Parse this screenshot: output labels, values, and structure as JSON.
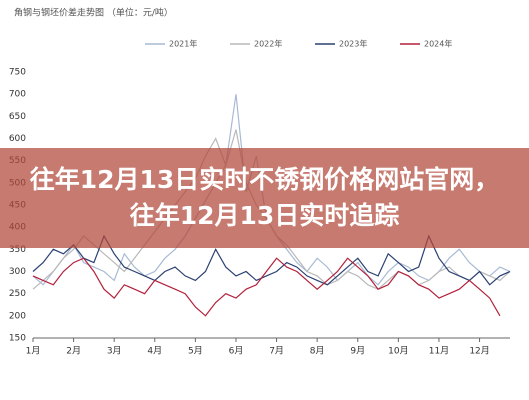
{
  "banner_text": "往年12月13日实时不锈钢价格网站官网，往年12月13日实时追踪",
  "chart_data": {
    "type": "line",
    "title": "角钢与钢坯价差走势图 （单位：元/吨）",
    "categories": [
      "1月",
      null,
      null,
      null,
      "2月",
      null,
      null,
      null,
      "3月",
      null,
      null,
      null,
      "4月",
      null,
      null,
      null,
      "5月",
      null,
      null,
      null,
      "6月",
      null,
      null,
      null,
      "7月",
      null,
      null,
      null,
      "8月",
      null,
      null,
      null,
      "9月",
      null,
      null,
      null,
      "10月",
      null,
      null,
      null,
      "11月",
      null,
      null,
      null,
      "12月",
      null,
      null,
      null
    ],
    "ylim": [
      150,
      750
    ],
    "yticks": [
      150,
      200,
      250,
      300,
      350,
      400,
      450,
      500,
      550,
      600,
      650,
      700,
      750
    ],
    "series": [
      {
        "name": "2021年",
        "color": "#a9bad4",
        "values": [
          290,
          270,
          300,
          330,
          360,
          320,
          310,
          300,
          280,
          340,
          310,
          290,
          300,
          330,
          350,
          380,
          420,
          460,
          500,
          540,
          700,
          480,
          560,
          420,
          380,
          350,
          320,
          300,
          330,
          310,
          280,
          300,
          320,
          290,
          270,
          300,
          320,
          310,
          290,
          280,
          300,
          330,
          350,
          320,
          300,
          290,
          310,
          300
        ]
      },
      {
        "name": "2022年",
        "color": "#b9b9b9",
        "values": [
          260,
          280,
          300,
          330,
          350,
          380,
          360,
          340,
          320,
          300,
          330,
          360,
          390,
          420,
          450,
          480,
          510,
          560,
          600,
          540,
          620,
          500,
          450,
          420,
          380,
          360,
          330,
          300,
          290,
          270,
          280,
          300,
          290,
          270,
          260,
          280,
          300,
          290,
          270,
          280,
          300,
          310,
          290,
          280,
          300,
          290,
          280,
          300
        ]
      },
      {
        "name": "2023年",
        "color": "#2b4172",
        "values": [
          300,
          320,
          350,
          340,
          360,
          330,
          320,
          380,
          340,
          310,
          300,
          290,
          280,
          300,
          310,
          290,
          280,
          300,
          350,
          310,
          290,
          300,
          280,
          290,
          300,
          320,
          310,
          290,
          280,
          270,
          290,
          310,
          330,
          300,
          290,
          340,
          320,
          300,
          310,
          380,
          330,
          300,
          290,
          280,
          300,
          270,
          290,
          300
        ]
      },
      {
        "name": "2024年",
        "color": "#b3213c",
        "values": [
          290,
          280,
          270,
          300,
          320,
          330,
          300,
          260,
          240,
          270,
          260,
          250,
          280,
          270,
          260,
          250,
          220,
          200,
          230,
          250,
          240,
          260,
          270,
          300,
          330,
          310,
          300,
          280,
          260,
          280,
          300,
          330,
          310,
          290,
          260,
          270,
          300,
          290,
          270,
          260,
          240,
          250,
          260,
          280,
          260,
          240,
          200,
          null
        ]
      }
    ]
  }
}
